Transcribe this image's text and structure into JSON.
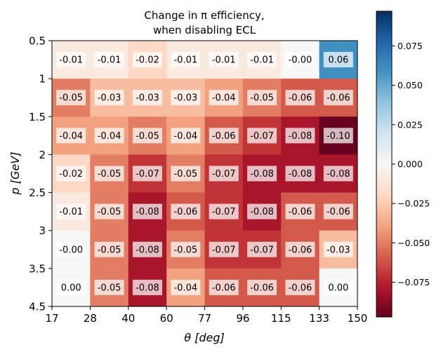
{
  "chart_data": {
    "type": "heatmap",
    "title": [
      "Change in π efficiency,",
      "when disabling ECL"
    ],
    "xlabel": "θ [deg]",
    "ylabel": "p [GeV]",
    "x_ticks": [
      "17",
      "28",
      "40",
      "60",
      "77",
      "96",
      "115",
      "133",
      "150"
    ],
    "y_ticks": [
      "0.5",
      "1",
      "1.5",
      "2",
      "2.5",
      "3",
      "3.5",
      "4.5"
    ],
    "values": [
      [
        -0.01,
        -0.01,
        -0.02,
        -0.01,
        -0.01,
        -0.01,
        0.0,
        0.06
      ],
      [
        -0.05,
        -0.03,
        -0.03,
        -0.03,
        -0.04,
        -0.05,
        -0.06,
        -0.06
      ],
      [
        -0.04,
        -0.04,
        -0.05,
        -0.04,
        -0.06,
        -0.07,
        -0.08,
        -0.1
      ],
      [
        -0.02,
        -0.05,
        -0.07,
        -0.05,
        -0.07,
        -0.08,
        -0.08,
        -0.08
      ],
      [
        -0.01,
        -0.05,
        -0.08,
        -0.06,
        -0.07,
        -0.08,
        -0.06,
        -0.06
      ],
      [
        -0.0,
        -0.05,
        -0.08,
        -0.05,
        -0.07,
        -0.07,
        -0.06,
        -0.03
      ],
      [
        0.0,
        -0.05,
        -0.08,
        -0.04,
        -0.06,
        -0.06,
        -0.06,
        0.0
      ]
    ],
    "labels": [
      [
        "-0.01",
        "-0.01",
        "-0.02",
        "-0.01",
        "-0.01",
        "-0.01",
        "-0.00",
        "0.06"
      ],
      [
        "-0.05",
        "-0.03",
        "-0.03",
        "-0.03",
        "-0.04",
        "-0.05",
        "-0.06",
        "-0.06"
      ],
      [
        "-0.04",
        "-0.04",
        "-0.05",
        "-0.04",
        "-0.06",
        "-0.07",
        "-0.08",
        "-0.10"
      ],
      [
        "-0.02",
        "-0.05",
        "-0.07",
        "-0.05",
        "-0.07",
        "-0.08",
        "-0.08",
        "-0.08"
      ],
      [
        "-0.01",
        "-0.05",
        "-0.08",
        "-0.06",
        "-0.07",
        "-0.08",
        "-0.06",
        "-0.06"
      ],
      [
        "-0.00",
        "-0.05",
        "-0.08",
        "-0.05",
        "-0.07",
        "-0.07",
        "-0.06",
        "-0.03"
      ],
      [
        "0.00",
        "-0.05",
        "-0.08",
        "-0.04",
        "-0.06",
        "-0.06",
        "-0.06",
        "0.00"
      ]
    ],
    "colorbar": {
      "colormap": "RdBu",
      "range": [
        -0.097,
        0.097
      ],
      "ticks": [
        0.075,
        0.05,
        0.025,
        0.0,
        -0.025,
        -0.05,
        -0.075
      ],
      "tick_labels": [
        "0.075",
        "0.050",
        "0.025",
        "0.000",
        "−0.025",
        "−0.050",
        "−0.075"
      ]
    }
  }
}
